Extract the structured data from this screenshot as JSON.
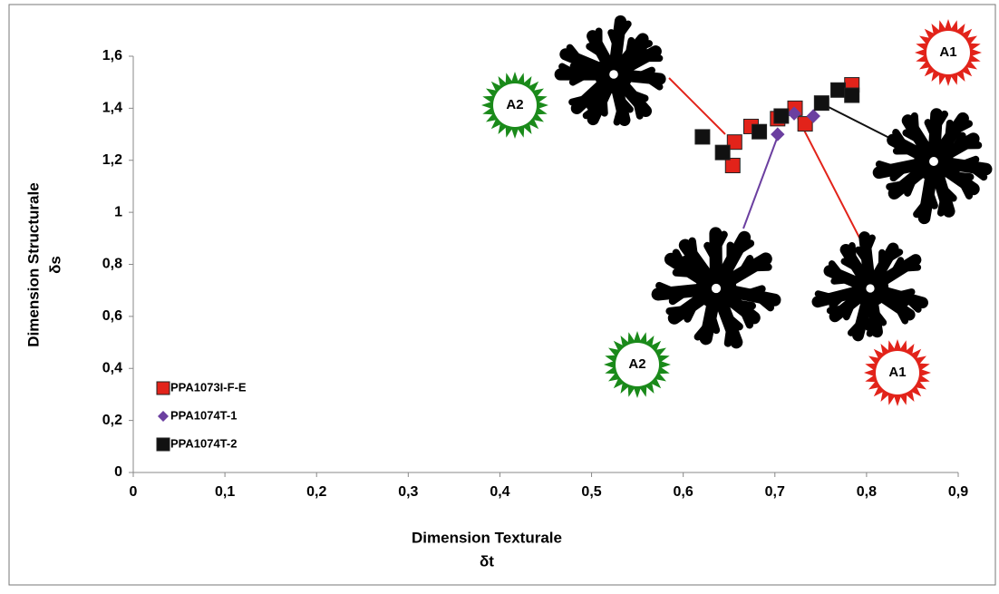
{
  "chart_data": {
    "type": "scatter",
    "xlabel": "Dimension Texturale",
    "xlabel_sub": "δt",
    "ylabel": "Dimension  Structurale",
    "ylabel_sub": "δs",
    "xlim": [
      0,
      0.9
    ],
    "xticks": [
      0,
      {
        "value": 0.1,
        "label": "0,1"
      },
      {
        "value": 0.2,
        "label": "0,2"
      },
      {
        "value": 0.3,
        "label": "0,3"
      },
      {
        "value": 0.4,
        "label": "0,4"
      },
      {
        "value": 0.5,
        "label": "0,5"
      },
      {
        "value": 0.6,
        "label": "0,6"
      },
      {
        "value": 0.7,
        "label": "0,7"
      },
      {
        "value": 0.8,
        "label": "0,8"
      },
      {
        "value": 0.9,
        "label": "0,9"
      }
    ],
    "ylim": [
      0,
      1.6
    ],
    "yticks": [
      0,
      {
        "value": 0.2,
        "label": "0,2"
      },
      {
        "value": 0.4,
        "label": "0,4"
      },
      {
        "value": 0.6,
        "label": "0,6"
      },
      {
        "value": 0.8,
        "label": "0,8"
      },
      1,
      {
        "value": 1.2,
        "label": "1,2"
      },
      {
        "value": 1.4,
        "label": "1,4"
      },
      {
        "value": 1.6,
        "label": "1,6"
      }
    ],
    "series": [
      {
        "name": "PPA1073I-F-E",
        "color": "#e2231a",
        "marker": "square",
        "x": [
          0.654,
          0.656,
          0.674,
          0.703,
          0.722,
          0.733,
          0.784
        ],
        "values": [
          1.18,
          1.27,
          1.33,
          1.36,
          1.4,
          1.34,
          1.49
        ]
      },
      {
        "name": "PPA1074T-1",
        "color": "#6b3fa0",
        "marker": "diamond",
        "x": [
          0.703,
          0.721,
          0.742
        ],
        "values": [
          1.3,
          1.38,
          1.37
        ]
      },
      {
        "name": "PPA1074T-2",
        "color": "#111111",
        "marker": "square",
        "x": [
          0.621,
          0.643,
          0.683,
          0.707,
          0.751,
          0.769,
          0.784
        ],
        "values": [
          1.29,
          1.23,
          1.31,
          1.37,
          1.42,
          1.47,
          1.45
        ]
      }
    ],
    "annotations": [
      "A2",
      "A1",
      "A2",
      "A1"
    ]
  }
}
